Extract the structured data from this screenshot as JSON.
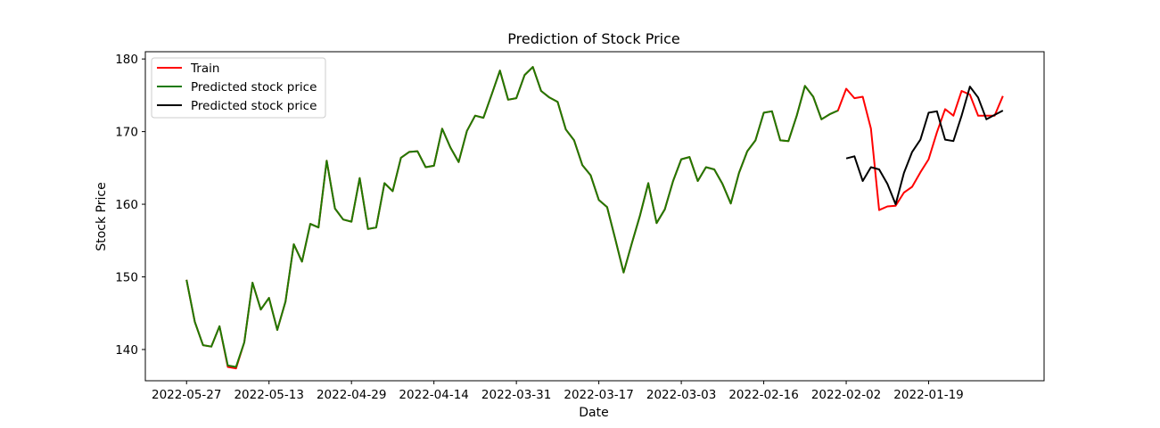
{
  "chart_data": {
    "type": "line",
    "title": "Prediction of Stock Price",
    "xlabel": "Date",
    "ylabel": "Stock Price",
    "x_tick_labels": [
      "2022-05-27",
      "2022-05-13",
      "2022-04-29",
      "2022-04-14",
      "2022-03-31",
      "2022-03-17",
      "2022-03-03",
      "2022-02-16",
      "2022-02-02",
      "2022-01-19"
    ],
    "x_tick_indices": [
      0,
      10,
      20,
      30,
      40,
      50,
      60,
      70,
      80,
      90
    ],
    "y_ticks": [
      140,
      150,
      160,
      170,
      180
    ],
    "ylim": [
      135.7,
      181.0
    ],
    "xlim": [
      -5,
      104
    ],
    "grid": false,
    "legend_position": "top-left",
    "series": [
      {
        "name": "Train",
        "color": "#ff0000",
        "start_index": 0,
        "values": [
          149.6,
          143.8,
          140.6,
          140.4,
          143.2,
          137.6,
          137.4,
          141.0,
          149.2,
          145.5,
          147.1,
          142.7,
          146.6,
          154.5,
          152.1,
          157.3,
          156.8,
          166.0,
          159.4,
          157.9,
          157.6,
          163.6,
          156.6,
          156.8,
          162.9,
          161.8,
          166.4,
          167.2,
          167.3,
          165.1,
          165.3,
          170.4,
          167.8,
          165.8,
          170.1,
          172.2,
          171.9,
          175.1,
          178.4,
          174.4,
          174.6,
          177.8,
          178.9,
          175.6,
          174.7,
          174.1,
          170.3,
          168.8,
          165.4,
          164.0,
          160.6,
          159.6,
          155.2,
          150.6,
          154.6,
          158.5,
          162.9,
          157.4,
          159.3,
          163.2,
          166.2,
          166.5,
          163.2,
          165.1,
          164.8,
          162.8,
          160.1,
          164.3,
          167.3,
          168.8,
          172.6,
          172.8,
          168.8,
          168.7,
          172.2,
          176.3,
          174.8,
          171.7,
          172.4,
          172.9,
          175.9,
          174.6,
          174.8,
          170.4,
          159.2,
          159.7,
          159.8,
          161.6,
          162.4,
          164.4,
          166.2,
          169.9,
          173.1,
          172.2,
          175.6,
          175.1,
          172.2,
          172.2,
          172.2,
          174.9
        ]
      },
      {
        "name": "Predicted stock price",
        "color": "#1f7a00",
        "start_index": 0,
        "values": [
          149.6,
          143.8,
          140.6,
          140.4,
          143.2,
          137.8,
          137.6,
          141.0,
          149.2,
          145.5,
          147.1,
          142.7,
          146.6,
          154.5,
          152.1,
          157.3,
          156.8,
          166.0,
          159.4,
          157.9,
          157.6,
          163.6,
          156.6,
          156.8,
          162.9,
          161.8,
          166.4,
          167.2,
          167.3,
          165.1,
          165.3,
          170.4,
          167.8,
          165.8,
          170.1,
          172.2,
          171.9,
          175.1,
          178.4,
          174.4,
          174.6,
          177.8,
          178.9,
          175.6,
          174.7,
          174.1,
          170.3,
          168.8,
          165.4,
          164.0,
          160.6,
          159.6,
          155.2,
          150.6,
          154.6,
          158.5,
          162.9,
          157.4,
          159.3,
          163.2,
          166.2,
          166.5,
          163.2,
          165.1,
          164.8,
          162.8,
          160.1,
          164.3,
          167.3,
          168.8,
          172.6,
          172.8,
          168.8,
          168.7,
          172.2,
          176.3,
          174.8,
          171.7,
          172.4,
          172.9
        ]
      },
      {
        "name": "Predicted stock price",
        "color": "#000000",
        "start_index": 80,
        "values": [
          166.3,
          166.6,
          163.2,
          165.1,
          164.8,
          162.8,
          160.0,
          164.3,
          167.2,
          168.9,
          172.6,
          172.8,
          168.9,
          168.7,
          172.2,
          176.2,
          174.7,
          171.7,
          172.3,
          172.9
        ]
      }
    ]
  }
}
